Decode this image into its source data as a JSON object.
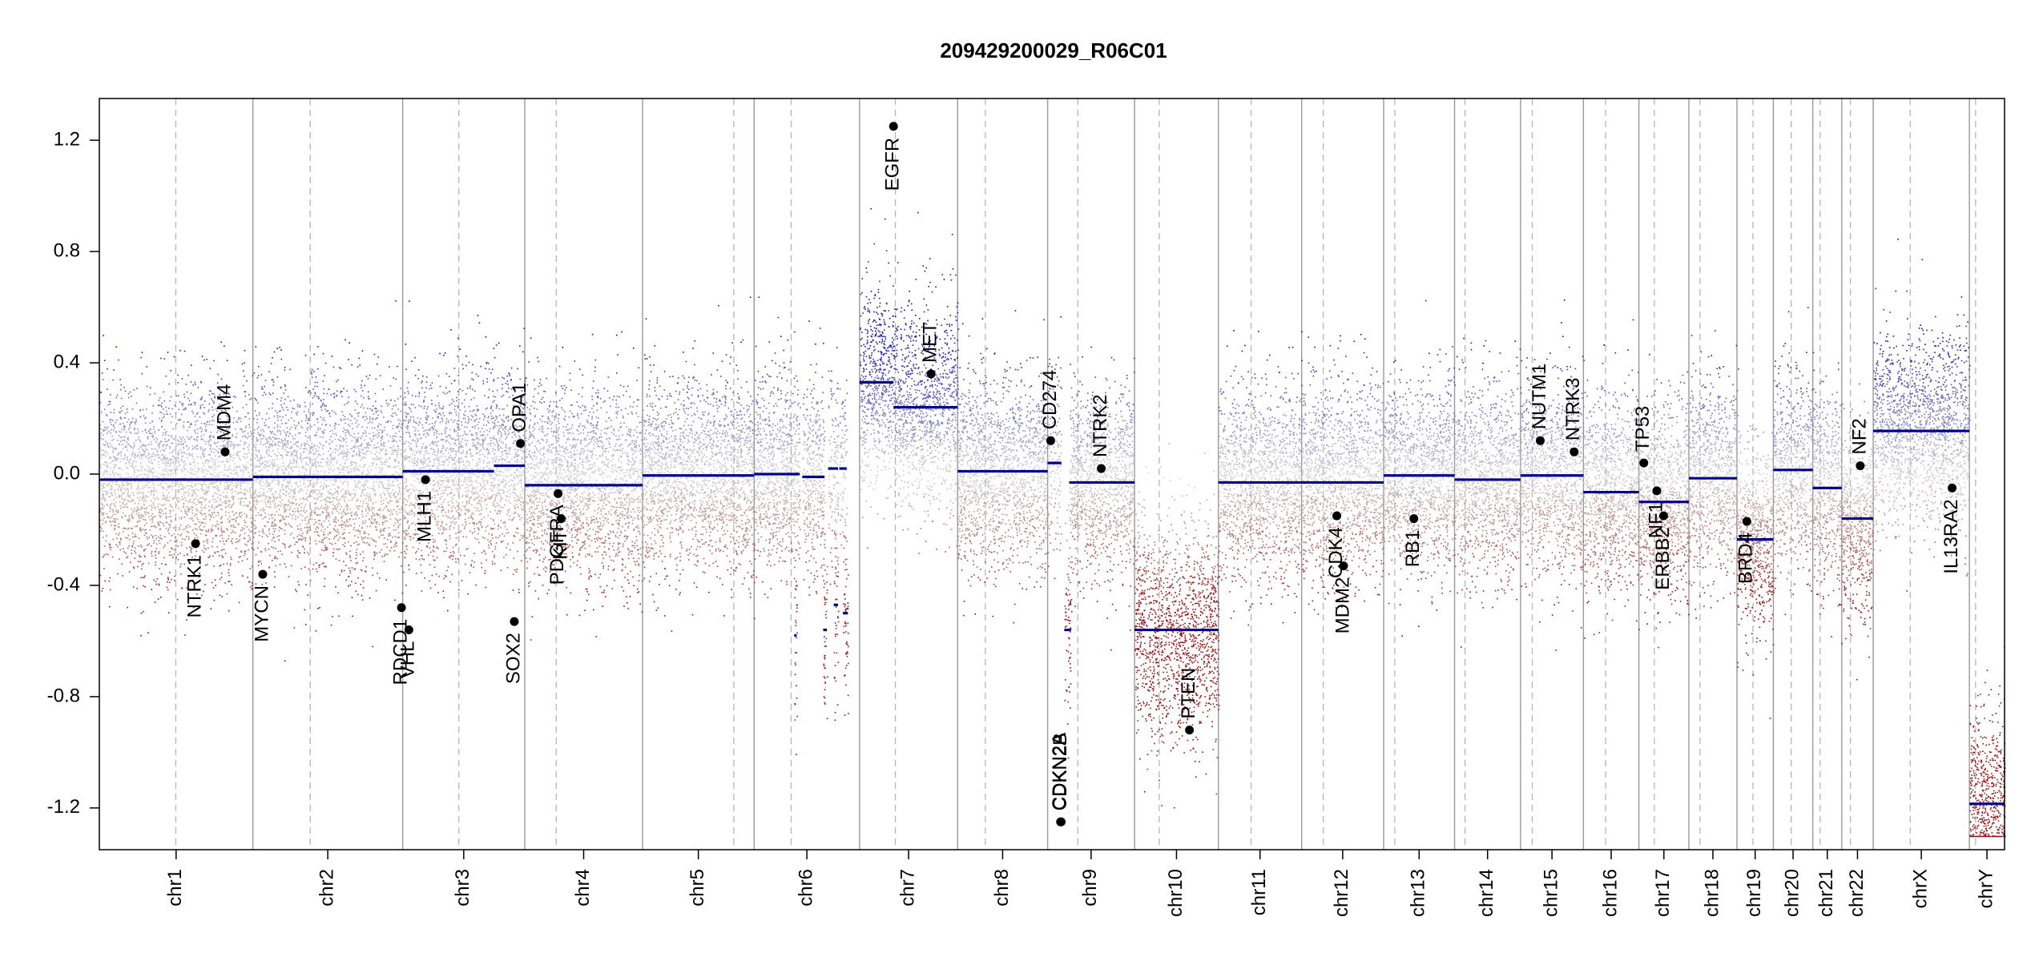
{
  "chart_data": {
    "type": "scatter",
    "title": "209429200029_R06C01",
    "xlabel": "",
    "ylabel": "",
    "ylim": [
      -1.35,
      1.35
    ],
    "yticks": [
      -1.2,
      -0.8,
      -0.4,
      0.0,
      0.4,
      0.8,
      1.2
    ],
    "ytick_labels": [
      "-1.2",
      "-0.8",
      "-0.4",
      "0.0",
      "0.4",
      "0.8",
      "1.2"
    ],
    "grid": "dashed vertical lines at chromosome centromeres, solid at chromosome boundaries",
    "colors": {
      "gain": "#1f1fa8",
      "loss": "#a81f1f",
      "neutral": "#bbbbbb",
      "segment": "#00008b",
      "gene": "#000000"
    },
    "chromosomes": [
      {
        "name": "chr1",
        "start": 0,
        "end": 249,
        "centromere": 124
      },
      {
        "name": "chr2",
        "start": 249,
        "end": 492,
        "centromere": 342
      },
      {
        "name": "chr3",
        "start": 492,
        "end": 690,
        "centromere": 583
      },
      {
        "name": "chr4",
        "start": 690,
        "end": 881,
        "centromere": 741
      },
      {
        "name": "chr5",
        "start": 881,
        "end": 1062,
        "centromere": 1029
      },
      {
        "name": "chr6",
        "start": 1062,
        "end": 1233,
        "centromere": 1122
      },
      {
        "name": "chr7",
        "start": 1233,
        "end": 1392,
        "centromere": 1291
      },
      {
        "name": "chr8",
        "start": 1392,
        "end": 1538,
        "centromere": 1437
      },
      {
        "name": "chr9",
        "start": 1538,
        "end": 1679,
        "centromere": 1587
      },
      {
        "name": "chr10",
        "start": 1679,
        "end": 1815,
        "centromere": 1719
      },
      {
        "name": "chr11",
        "start": 1815,
        "end": 1950,
        "centromere": 1868
      },
      {
        "name": "chr12",
        "start": 1950,
        "end": 2083,
        "centromere": 1985
      },
      {
        "name": "chr13",
        "start": 2083,
        "end": 2198,
        "centromere": 2101
      },
      {
        "name": "chr14",
        "start": 2198,
        "end": 2305,
        "centromere": 2215
      },
      {
        "name": "chr15",
        "start": 2305,
        "end": 2407,
        "centromere": 2324
      },
      {
        "name": "chr16",
        "start": 2407,
        "end": 2497,
        "centromere": 2443
      },
      {
        "name": "chr17",
        "start": 2497,
        "end": 2578,
        "centromere": 2522
      },
      {
        "name": "chr18",
        "start": 2578,
        "end": 2656,
        "centromere": 2596
      },
      {
        "name": "chr19",
        "start": 2656,
        "end": 2715,
        "centromere": 2682
      },
      {
        "name": "chr20",
        "start": 2715,
        "end": 2779,
        "centromere": 2744
      },
      {
        "name": "chr21",
        "start": 2779,
        "end": 2826,
        "centromere": 2791
      },
      {
        "name": "chr22",
        "start": 2826,
        "end": 2877,
        "centromere": 2840
      },
      {
        "name": "chrX",
        "start": 2877,
        "end": 3033,
        "centromere": 2937
      },
      {
        "name": "chrY",
        "start": 3033,
        "end": 3090,
        "centromere": 3043
      }
    ],
    "segments": [
      {
        "chr": "chr1",
        "start": 0,
        "end": 249,
        "value": -0.02
      },
      {
        "chr": "chr2",
        "start": 249,
        "end": 492,
        "value": -0.01
      },
      {
        "chr": "chr3",
        "start": 492,
        "end": 640,
        "value": 0.01
      },
      {
        "chr": "chr3",
        "start": 640,
        "end": 690,
        "value": 0.03
      },
      {
        "chr": "chr4",
        "start": 690,
        "end": 881,
        "value": -0.04
      },
      {
        "chr": "chr5",
        "start": 881,
        "end": 1062,
        "value": -0.005
      },
      {
        "chr": "chr6",
        "start": 1062,
        "end": 1136,
        "value": 0.0
      },
      {
        "chr": "chr6",
        "start": 1140,
        "end": 1176,
        "value": -0.01
      },
      {
        "chr": "chr6",
        "start": 1182,
        "end": 1198,
        "value": 0.02
      },
      {
        "chr": "chr6",
        "start": 1200,
        "end": 1212,
        "value": 0.02
      },
      {
        "chr": "chr6",
        "start": 1127,
        "end": 1131,
        "value": -0.58
      },
      {
        "chr": "chr6",
        "start": 1174,
        "end": 1180,
        "value": -0.56
      },
      {
        "chr": "chr6",
        "start": 1191,
        "end": 1198,
        "value": -0.47
      },
      {
        "chr": "chr6",
        "start": 1206,
        "end": 1214,
        "value": -0.5
      },
      {
        "chr": "chr7",
        "start": 1233,
        "end": 1288,
        "value": 0.33
      },
      {
        "chr": "chr7",
        "start": 1288,
        "end": 1392,
        "value": 0.24
      },
      {
        "chr": "chr8",
        "start": 1392,
        "end": 1538,
        "value": 0.01
      },
      {
        "chr": "chr9",
        "start": 1538,
        "end": 1560,
        "value": 0.04
      },
      {
        "chr": "chr9",
        "start": 1565,
        "end": 1575,
        "value": -0.56
      },
      {
        "chr": "chr9",
        "start": 1573,
        "end": 1679,
        "value": -0.03
      },
      {
        "chr": "chr10",
        "start": 1679,
        "end": 1815,
        "value": -0.56
      },
      {
        "chr": "chr11",
        "start": 1815,
        "end": 1950,
        "value": -0.03
      },
      {
        "chr": "chr12",
        "start": 1950,
        "end": 2083,
        "value": -0.03
      },
      {
        "chr": "chr13",
        "start": 2083,
        "end": 2198,
        "value": -0.005
      },
      {
        "chr": "chr14",
        "start": 2198,
        "end": 2305,
        "value": -0.02
      },
      {
        "chr": "chr15",
        "start": 2305,
        "end": 2407,
        "value": -0.005
      },
      {
        "chr": "chr16",
        "start": 2407,
        "end": 2497,
        "value": -0.065
      },
      {
        "chr": "chr17",
        "start": 2497,
        "end": 2578,
        "value": -0.1
      },
      {
        "chr": "chr18",
        "start": 2578,
        "end": 2656,
        "value": -0.015
      },
      {
        "chr": "chr19",
        "start": 2656,
        "end": 2715,
        "value": -0.235
      },
      {
        "chr": "chr20",
        "start": 2715,
        "end": 2779,
        "value": 0.015
      },
      {
        "chr": "chr21",
        "start": 2779,
        "end": 2826,
        "value": -0.05
      },
      {
        "chr": "chr22",
        "start": 2826,
        "end": 2877,
        "value": -0.16
      },
      {
        "chr": "chrX",
        "start": 2877,
        "end": 3033,
        "value": 0.155
      },
      {
        "chr": "chrY",
        "start": 3033,
        "end": 3090,
        "value": -1.185
      }
    ],
    "genes": [
      {
        "name": "NTRK1",
        "pos": 156,
        "value": -0.25,
        "label_side": "below"
      },
      {
        "name": "MDM4",
        "pos": 204,
        "value": 0.08,
        "label_side": "above"
      },
      {
        "name": "MYCN",
        "pos": 265,
        "value": -0.36,
        "label_side": "below"
      },
      {
        "name": "RDCD1",
        "pos": 490,
        "value": -0.48,
        "label_side": "below"
      },
      {
        "name": "VHL",
        "pos": 502,
        "value": -0.56,
        "label_side": "below"
      },
      {
        "name": "MLH1",
        "pos": 529,
        "value": -0.02,
        "label_side": "below"
      },
      {
        "name": "SOX2",
        "pos": 673,
        "value": -0.53,
        "label_side": "below"
      },
      {
        "name": "OPA1",
        "pos": 683,
        "value": 0.11,
        "label_side": "above"
      },
      {
        "name": "PDGFRA",
        "pos": 744,
        "value": -0.07,
        "label_side": "below"
      },
      {
        "name": "KIT",
        "pos": 749,
        "value": -0.16,
        "label_side": "below"
      },
      {
        "name": "EGFR",
        "pos": 1288,
        "value": 1.25,
        "label_side": "below"
      },
      {
        "name": "MET",
        "pos": 1349,
        "value": 0.36,
        "label_side": "above"
      },
      {
        "name": "CD274",
        "pos": 1543,
        "value": 0.12,
        "label_side": "above"
      },
      {
        "name": "CDKN2A",
        "pos": 1559,
        "value": -1.25,
        "label_side": "above"
      },
      {
        "name": "CDKN2B",
        "pos": 1560,
        "value": -1.25,
        "label_side": "above"
      },
      {
        "name": "NTRK2",
        "pos": 1625,
        "value": 0.02,
        "label_side": "above"
      },
      {
        "name": "PTEN",
        "pos": 1768,
        "value": -0.92,
        "label_side": "above"
      },
      {
        "name": "MDM2",
        "pos": 2018,
        "value": -0.33,
        "label_side": "below"
      },
      {
        "name": "CDK4",
        "pos": 2007,
        "value": -0.15,
        "label_side": "below"
      },
      {
        "name": "RB1",
        "pos": 2132,
        "value": -0.16,
        "label_side": "below"
      },
      {
        "name": "NUTM1",
        "pos": 2337,
        "value": 0.12,
        "label_side": "above"
      },
      {
        "name": "NTRK3",
        "pos": 2392,
        "value": 0.08,
        "label_side": "above"
      },
      {
        "name": "TP53",
        "pos": 2505,
        "value": 0.04,
        "label_side": "above"
      },
      {
        "name": "NF1",
        "pos": 2526,
        "value": -0.06,
        "label_side": "below"
      },
      {
        "name": "ERBB2",
        "pos": 2537,
        "value": -0.15,
        "label_side": "below"
      },
      {
        "name": "BRD4",
        "pos": 2672,
        "value": -0.17,
        "label_side": "below"
      },
      {
        "name": "NF2",
        "pos": 2856,
        "value": 0.03,
        "label_side": "above"
      },
      {
        "name": "IL13RA2",
        "pos": 3005,
        "value": -0.05,
        "label_side": "below"
      }
    ]
  }
}
